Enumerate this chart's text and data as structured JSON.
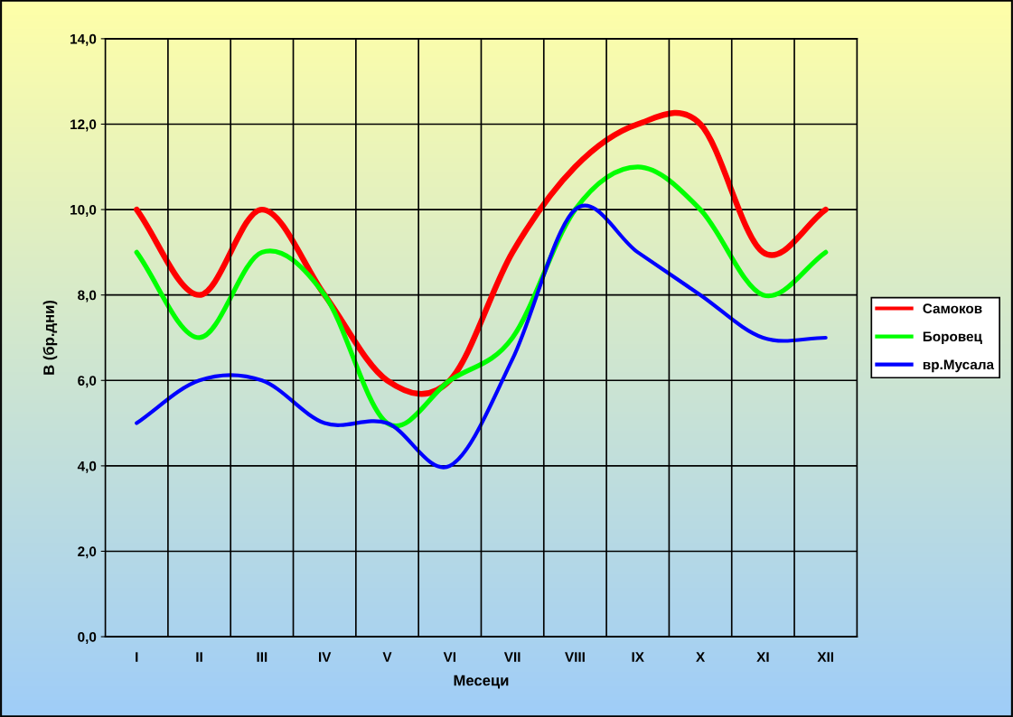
{
  "chart_data": {
    "type": "line",
    "xlabel": "Месеци",
    "ylabel": "В (бр.дни)",
    "categories": [
      "I",
      "II",
      "III",
      "IV",
      "V",
      "VI",
      "VII",
      "VIII",
      "IX",
      "X",
      "XI",
      "XII"
    ],
    "series": [
      {
        "name": "Самоков",
        "color": "#ff0000",
        "values": [
          10,
          8,
          10,
          8,
          6,
          6,
          9,
          11,
          12,
          12,
          9,
          10
        ]
      },
      {
        "name": "Боровец",
        "color": "#00ff00",
        "values": [
          9,
          7,
          9,
          8,
          5,
          6,
          7,
          10,
          11,
          10,
          8,
          9
        ]
      },
      {
        "name": "вр.Мусала",
        "color": "#0000ff",
        "values": [
          5,
          6,
          6,
          5,
          5,
          4,
          6.5,
          10,
          9,
          8,
          7,
          7
        ]
      }
    ],
    "ylim": [
      0,
      14
    ],
    "yticks": [
      {
        "value": 0,
        "label": "0,0"
      },
      {
        "value": 2,
        "label": "2,0"
      },
      {
        "value": 4,
        "label": "4,0"
      },
      {
        "value": 6,
        "label": "6,0"
      },
      {
        "value": 8,
        "label": "8,0"
      },
      {
        "value": 10,
        "label": "10,0"
      },
      {
        "value": 12,
        "label": "12,0"
      },
      {
        "value": 14,
        "label": "14,0"
      }
    ],
    "grid": true,
    "legend": "right",
    "marker": "none",
    "line_style": "solid"
  }
}
